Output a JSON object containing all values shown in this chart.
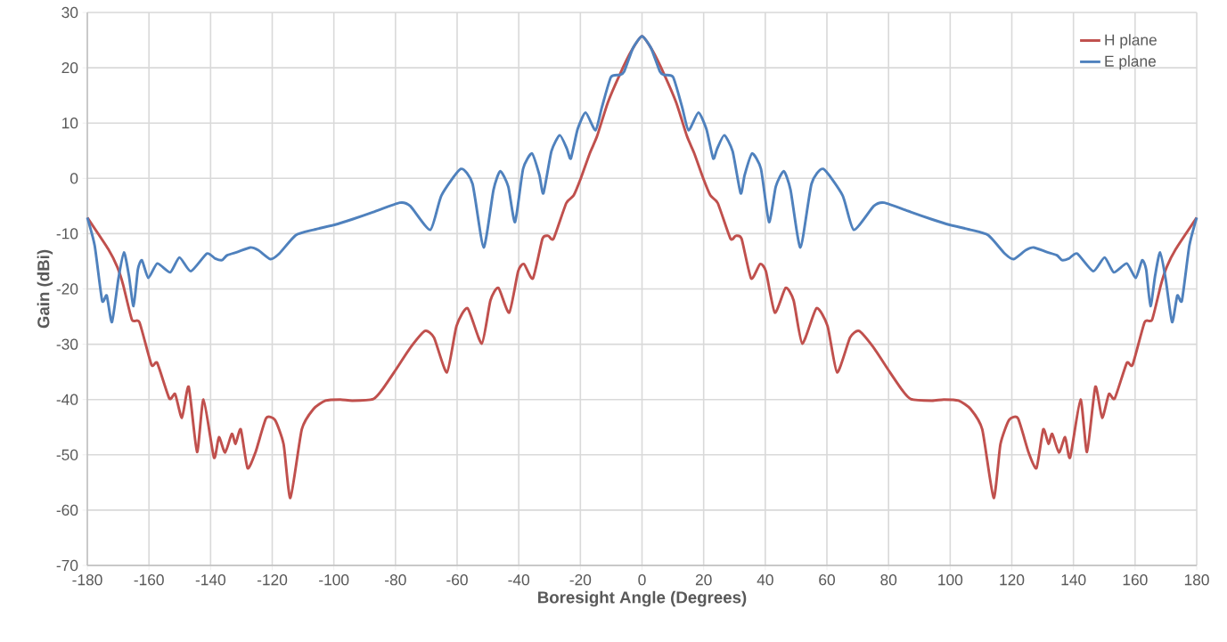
{
  "chart_data": {
    "type": "line",
    "xlabel": "Boresight Angle (Degrees)",
    "ylabel": "Gain  (dBi)",
    "xlim": [
      -180,
      180
    ],
    "ylim": [
      -70,
      30
    ],
    "xticks": [
      -180,
      -160,
      -140,
      -120,
      -100,
      -80,
      -60,
      -40,
      -20,
      0,
      20,
      40,
      60,
      80,
      100,
      120,
      140,
      160,
      180
    ],
    "yticks": [
      -70,
      -60,
      -50,
      -40,
      -30,
      -20,
      -10,
      0,
      10,
      20,
      30
    ],
    "grid": true,
    "legend": "top right",
    "marker": "none",
    "line_style": "solid",
    "series": [
      {
        "name": "H plane",
        "color": "#c0504d",
        "x": [
          -180,
          -173.2,
          -170.3,
          -168.4,
          -165.5,
          -163.1,
          -159.2,
          -157.3,
          -153.4,
          -151.5,
          -149.3,
          -147.1,
          -144.4,
          -142.3,
          -138.9,
          -137.3,
          -135.3,
          -133.1,
          -131.9,
          -130.2,
          -128,
          -125.4,
          -122,
          -119.1,
          -116.3,
          -114.1,
          -110.4,
          -106.6,
          -102.7,
          -97.9,
          -94,
          -87.2,
          -84.3,
          -80,
          -75,
          -70.4,
          -67.5,
          -63.3,
          -60.2,
          -56.6,
          -52,
          -49.2,
          -46.6,
          -43.1,
          -40.2,
          -38.3,
          -35.4,
          -32.3,
          -30.4,
          -28.7,
          -24.6,
          -22.2,
          -19.8,
          -16.9,
          -14.6,
          -11.1,
          -7.2,
          -3.4,
          0,
          3.4,
          7.2,
          11.1,
          14.6,
          16.9,
          19.8,
          22.2,
          24.6,
          28.7,
          30.4,
          32.3,
          35.4,
          38.3,
          40.2,
          43.1,
          46.6,
          49.2,
          52,
          56.6,
          60.2,
          63.3,
          67.5,
          70.4,
          75,
          80,
          84.3,
          87.2,
          94,
          97.9,
          102.7,
          106.6,
          110.4,
          114.1,
          116.3,
          119.1,
          122,
          125.4,
          128,
          130.2,
          131.9,
          133.1,
          135.3,
          137.3,
          138.9,
          142.3,
          144.4,
          147.1,
          149.3,
          151.5,
          153.4,
          157.3,
          159.2,
          163.1,
          165.5,
          168.4,
          170.3,
          173.2,
          180
        ],
        "values": [
          -7.1,
          -12.8,
          -16,
          -19.2,
          -25.6,
          -26,
          -33.7,
          -33.4,
          -39.8,
          -39,
          -43.3,
          -37.7,
          -49.5,
          -40,
          -50.5,
          -46.8,
          -49.6,
          -46.2,
          -48,
          -45.4,
          -52.4,
          -49.5,
          -43.4,
          -43.7,
          -48.1,
          -57.8,
          -45.4,
          -41.7,
          -40.2,
          -40,
          -40.2,
          -39.9,
          -38.2,
          -34.7,
          -30.5,
          -27.6,
          -28.8,
          -35.1,
          -26.7,
          -23.5,
          -29.9,
          -22.1,
          -19.8,
          -24.3,
          -16.8,
          -15.5,
          -18.1,
          -10.9,
          -10.4,
          -10.9,
          -4.5,
          -3.1,
          0.1,
          4.6,
          7.6,
          13.7,
          18.8,
          23.1,
          25.7,
          23.1,
          18.8,
          13.7,
          7.6,
          4.6,
          0.1,
          -3.1,
          -4.5,
          -10.9,
          -10.4,
          -10.9,
          -18.1,
          -15.5,
          -16.8,
          -24.3,
          -19.8,
          -22.1,
          -29.9,
          -23.5,
          -26.7,
          -35.1,
          -28.8,
          -27.6,
          -30.5,
          -34.7,
          -38.2,
          -39.9,
          -40.2,
          -40,
          -40.2,
          -41.7,
          -45.4,
          -57.8,
          -48.1,
          -43.7,
          -43.4,
          -49.5,
          -52.4,
          -45.4,
          -48,
          -46.2,
          -49.6,
          -46.8,
          -50.5,
          -40,
          -49.5,
          -37.7,
          -43.3,
          -39,
          -39.8,
          -33.4,
          -33.7,
          -26,
          -25.6,
          -19.2,
          -16,
          -12.8,
          -7.1
        ]
      },
      {
        "name": "E plane",
        "color": "#4f81bd",
        "x": [
          -180,
          -177.6,
          -175.2,
          -173.7,
          -172,
          -169.9,
          -168.1,
          -166.5,
          -165,
          -163.6,
          -162.3,
          -160.2,
          -157.3,
          -153.1,
          -150.1,
          -146.4,
          -141.2,
          -138.5,
          -136.3,
          -134.6,
          -131.2,
          -127.1,
          -124.5,
          -120.6,
          -117.7,
          -112.4,
          -106.6,
          -99.8,
          -94,
          -87.2,
          -78.6,
          -75.2,
          -68.7,
          -65.1,
          -58.8,
          -55,
          -51.4,
          -48.2,
          -46,
          -43.4,
          -41.2,
          -38.6,
          -35.7,
          -33.3,
          -32,
          -29.4,
          -26.7,
          -24.4,
          -23.1,
          -20.9,
          -18.3,
          -15.1,
          -13,
          -10.1,
          -7.2,
          -5.8,
          -2.9,
          0,
          2.9,
          5.8,
          7.2,
          10.1,
          13,
          15.1,
          18.3,
          20.9,
          23.1,
          24.4,
          26.7,
          29.4,
          32,
          33.3,
          35.7,
          38.6,
          41.2,
          43.4,
          46,
          48.2,
          51.4,
          55,
          58.8,
          65.1,
          68.7,
          75.2,
          78.6,
          87.2,
          94,
          99.8,
          106.6,
          112.4,
          117.7,
          120.6,
          124.5,
          127.1,
          131.2,
          134.6,
          136.3,
          138.5,
          141.2,
          146.4,
          150.1,
          153.1,
          157.3,
          160.2,
          162.3,
          163.6,
          165,
          166.5,
          168.1,
          169.9,
          172,
          173.7,
          175.2,
          177.6,
          180
        ],
        "values": [
          -7.1,
          -12.2,
          -22.1,
          -21.2,
          -26,
          -18.1,
          -13.4,
          -17.6,
          -23.1,
          -16.5,
          -14.8,
          -18,
          -15.4,
          -17,
          -14.3,
          -16.8,
          -13.6,
          -14.5,
          -14.8,
          -13.9,
          -13.3,
          -12.5,
          -13,
          -14.6,
          -13.6,
          -10.3,
          -9.3,
          -8.4,
          -7.4,
          -6.1,
          -4.4,
          -5,
          -9.3,
          -3.1,
          1.7,
          -1,
          -12.5,
          -2.1,
          1.3,
          -1.5,
          -7.9,
          1.7,
          4.5,
          0.6,
          -2.7,
          4.9,
          7.8,
          5.4,
          3.6,
          8.9,
          11.9,
          8.7,
          12.9,
          18.3,
          18.7,
          19.3,
          23.6,
          25.7,
          23.6,
          19.3,
          18.7,
          18.3,
          12.9,
          8.7,
          11.9,
          8.9,
          3.6,
          5.4,
          7.8,
          4.9,
          -2.7,
          0.6,
          4.5,
          1.7,
          -7.9,
          -1.5,
          1.3,
          -2.1,
          -12.5,
          -1,
          1.7,
          -3.1,
          -9.3,
          -5,
          -4.4,
          -6.1,
          -7.4,
          -8.4,
          -9.3,
          -10.3,
          -13.6,
          -14.6,
          -13,
          -12.5,
          -13.3,
          -13.9,
          -14.8,
          -14.5,
          -13.6,
          -16.8,
          -14.3,
          -17,
          -15.4,
          -18,
          -14.8,
          -16.5,
          -23.1,
          -17.6,
          -13.4,
          -18.1,
          -26,
          -21.2,
          -22.1,
          -12.2,
          -7.1
        ]
      }
    ]
  }
}
